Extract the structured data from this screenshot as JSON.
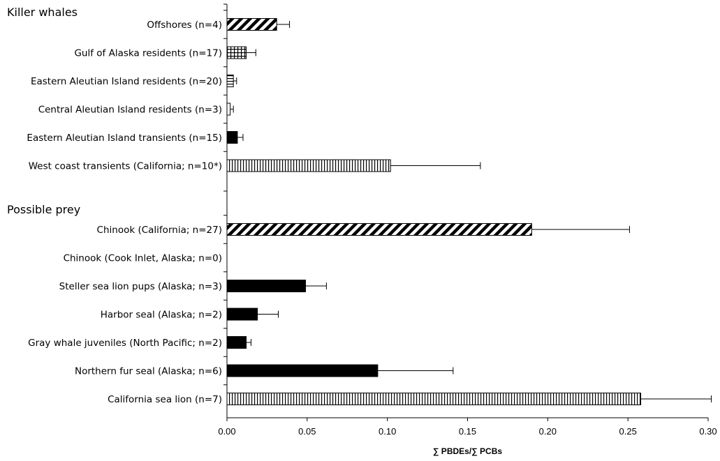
{
  "chart_data": {
    "type": "bar",
    "orientation": "horizontal",
    "xlabel": "∑ PBDEs/∑ PCBs",
    "xlim": [
      0,
      0.3
    ],
    "xticks": [
      "0.00",
      "0.05",
      "0.10",
      "0.15",
      "0.20",
      "0.25",
      "0.30"
    ],
    "grid": false,
    "groups": [
      {
        "label": "Killer whales",
        "items": [
          {
            "label": "Offshores (n=4)",
            "value": 0.031,
            "error": 0.008,
            "pattern": "diagonal"
          },
          {
            "label": "Gulf of Alaska residents (n=17)",
            "value": 0.012,
            "error": 0.006,
            "pattern": "grid"
          },
          {
            "label": "Eastern Aleutian Island residents  (n=20)",
            "value": 0.004,
            "error": 0.002,
            "pattern": "horizontal"
          },
          {
            "label": "Central Aleutian Island residents (n=3)",
            "value": 0.002,
            "error": 0.002,
            "pattern": "none"
          },
          {
            "label": "Eastern Aleutian Island transients (n=15)",
            "value": 0.0065,
            "error": 0.0035,
            "pattern": "solid"
          },
          {
            "label": "West coast transients (California; n=10*)",
            "value": 0.102,
            "error": 0.056,
            "pattern": "vertical"
          }
        ]
      },
      {
        "label": "Possible prey",
        "items": [
          {
            "label": "Chinook (California; n=27)",
            "value": 0.19,
            "error": 0.061,
            "pattern": "diagonal"
          },
          {
            "label": "Chinook (Cook Inlet, Alaska; n=0)",
            "value": null,
            "error": null,
            "pattern": "none"
          },
          {
            "label": "Steller sea lion pups (Alaska; n=3)",
            "value": 0.049,
            "error": 0.013,
            "pattern": "solid"
          },
          {
            "label": "Harbor seal (Alaska; n=2)",
            "value": 0.019,
            "error": 0.013,
            "pattern": "solid"
          },
          {
            "label": "Gray whale juveniles (North Pacific; n=2)",
            "value": 0.012,
            "error": 0.003,
            "pattern": "solid"
          },
          {
            "label": "Northern fur seal (Alaska; n=6)",
            "value": 0.094,
            "error": 0.047,
            "pattern": "solid"
          },
          {
            "label": "California sea lion (n=7)",
            "value": 0.258,
            "error": 0.044,
            "pattern": "vertical"
          }
        ]
      }
    ]
  }
}
